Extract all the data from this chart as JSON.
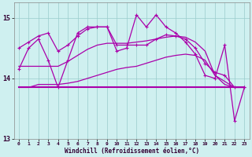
{
  "xlabel": "Windchill (Refroidissement éolien,°C)",
  "background_color": "#cff0f0",
  "line_color": "#aa00aa",
  "grid_color": "#99cccc",
  "xlim": [
    -0.5,
    23.5
  ],
  "ylim": [
    13.0,
    15.25
  ],
  "yticks": [
    13,
    14,
    15
  ],
  "xticks": [
    0,
    1,
    2,
    3,
    4,
    5,
    6,
    7,
    8,
    9,
    10,
    11,
    12,
    13,
    14,
    15,
    16,
    17,
    18,
    19,
    20,
    21,
    22,
    23
  ],
  "series": {
    "top_spiky": [
      14.15,
      14.5,
      14.65,
      14.3,
      13.85,
      14.3,
      14.75,
      14.85,
      14.85,
      14.85,
      14.45,
      14.5,
      15.05,
      14.85,
      15.05,
      14.85,
      14.75,
      14.6,
      14.4,
      14.05,
      14.0,
      14.55,
      13.3,
      13.85
    ],
    "upper_smooth": [
      14.5,
      14.6,
      14.7,
      14.75,
      14.45,
      14.55,
      14.7,
      14.82,
      14.85,
      14.85,
      14.55,
      14.55,
      14.55,
      14.55,
      14.65,
      14.72,
      14.7,
      14.65,
      14.5,
      14.25,
      14.1,
      14.05,
      13.85,
      13.85
    ],
    "mid_flat": [
      13.85,
      13.85,
      13.85,
      13.85,
      13.85,
      13.85,
      13.85,
      13.85,
      13.85,
      13.85,
      13.85,
      13.85,
      13.85,
      13.85,
      13.85,
      13.85,
      13.85,
      13.85,
      13.85,
      13.85,
      13.85,
      13.85,
      13.85,
      13.85
    ],
    "lower_rising": [
      13.85,
      13.85,
      13.9,
      13.9,
      13.9,
      13.92,
      13.95,
      14.0,
      14.05,
      14.1,
      14.15,
      14.18,
      14.2,
      14.25,
      14.3,
      14.35,
      14.38,
      14.4,
      14.38,
      14.3,
      14.05,
      13.9,
      13.85,
      13.85
    ],
    "upper_declining": [
      14.2,
      14.2,
      14.2,
      14.2,
      14.2,
      14.28,
      14.38,
      14.48,
      14.55,
      14.58,
      14.58,
      14.58,
      14.6,
      14.62,
      14.65,
      14.68,
      14.7,
      14.68,
      14.6,
      14.45,
      14.05,
      13.95,
      13.85,
      13.85
    ]
  }
}
